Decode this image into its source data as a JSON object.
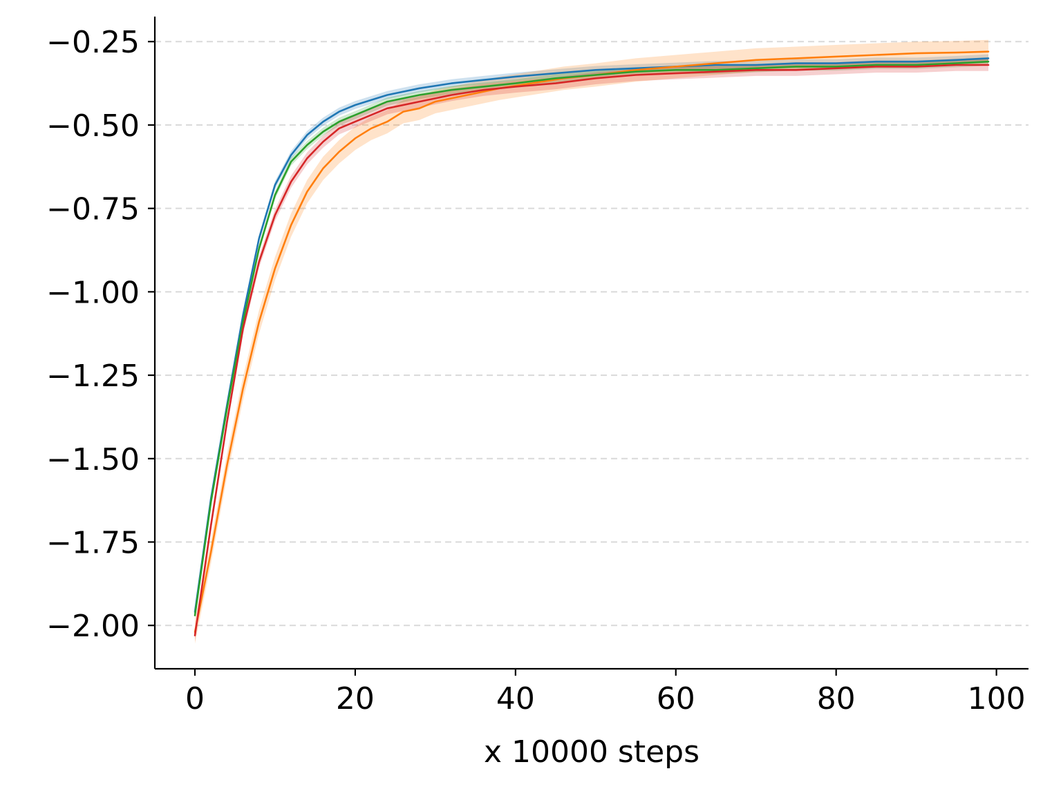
{
  "chart_data": {
    "type": "line",
    "title": "",
    "xlabel": "x 10000 steps",
    "ylabel": "",
    "xlim": [
      -5,
      104
    ],
    "ylim": [
      -2.13,
      -0.175
    ],
    "xticks": [
      0,
      20,
      40,
      60,
      80,
      100
    ],
    "xtick_labels": [
      "0",
      "20",
      "40",
      "60",
      "80",
      "100"
    ],
    "yticks": [
      -2.0,
      -1.75,
      -1.5,
      -1.25,
      -1.0,
      -0.75,
      -0.5,
      -0.25
    ],
    "ytick_labels": [
      "−2.00",
      "−1.75",
      "−1.50",
      "−1.25",
      "−1.00",
      "−0.75",
      "−0.50",
      "−0.25"
    ],
    "grid": "horizontal dashed",
    "legend": "none",
    "series": [
      {
        "color": "#1f77b4",
        "points": [
          [
            0,
            -1.96
          ],
          [
            2,
            -1.62
          ],
          [
            4,
            -1.34
          ],
          [
            6,
            -1.07
          ],
          [
            8,
            -0.84
          ],
          [
            10,
            -0.68
          ],
          [
            12,
            -0.59
          ],
          [
            14,
            -0.53
          ],
          [
            16,
            -0.49
          ],
          [
            18,
            -0.46
          ],
          [
            20,
            -0.44
          ],
          [
            24,
            -0.41
          ],
          [
            28,
            -0.39
          ],
          [
            32,
            -0.375
          ],
          [
            36,
            -0.365
          ],
          [
            40,
            -0.355
          ],
          [
            45,
            -0.345
          ],
          [
            50,
            -0.335
          ],
          [
            55,
            -0.33
          ],
          [
            60,
            -0.325
          ],
          [
            65,
            -0.32
          ],
          [
            70,
            -0.32
          ],
          [
            75,
            -0.315
          ],
          [
            80,
            -0.315
          ],
          [
            85,
            -0.31
          ],
          [
            90,
            -0.31
          ],
          [
            95,
            -0.305
          ],
          [
            99,
            -0.3
          ]
        ],
        "band": 0.012
      },
      {
        "color": "#ff7f0e",
        "points": [
          [
            0,
            -2.02
          ],
          [
            2,
            -1.78
          ],
          [
            4,
            -1.52
          ],
          [
            6,
            -1.29
          ],
          [
            8,
            -1.09
          ],
          [
            10,
            -0.93
          ],
          [
            12,
            -0.8
          ],
          [
            14,
            -0.7
          ],
          [
            16,
            -0.63
          ],
          [
            18,
            -0.58
          ],
          [
            20,
            -0.54
          ],
          [
            22,
            -0.51
          ],
          [
            24,
            -0.49
          ],
          [
            26,
            -0.46
          ],
          [
            28,
            -0.45
          ],
          [
            30,
            -0.43
          ],
          [
            34,
            -0.41
          ],
          [
            38,
            -0.39
          ],
          [
            42,
            -0.375
          ],
          [
            46,
            -0.36
          ],
          [
            50,
            -0.35
          ],
          [
            55,
            -0.335
          ],
          [
            60,
            -0.325
          ],
          [
            65,
            -0.315
          ],
          [
            70,
            -0.305
          ],
          [
            75,
            -0.3
          ],
          [
            80,
            -0.295
          ],
          [
            85,
            -0.29
          ],
          [
            90,
            -0.285
          ],
          [
            95,
            -0.283
          ],
          [
            99,
            -0.28
          ]
        ],
        "band": 0.035
      },
      {
        "color": "#2ca02c",
        "points": [
          [
            0,
            -1.97
          ],
          [
            2,
            -1.63
          ],
          [
            4,
            -1.35
          ],
          [
            6,
            -1.09
          ],
          [
            8,
            -0.87
          ],
          [
            10,
            -0.71
          ],
          [
            12,
            -0.61
          ],
          [
            14,
            -0.56
          ],
          [
            16,
            -0.52
          ],
          [
            18,
            -0.49
          ],
          [
            20,
            -0.47
          ],
          [
            24,
            -0.43
          ],
          [
            28,
            -0.41
          ],
          [
            32,
            -0.395
          ],
          [
            36,
            -0.385
          ],
          [
            40,
            -0.375
          ],
          [
            45,
            -0.36
          ],
          [
            50,
            -0.35
          ],
          [
            55,
            -0.34
          ],
          [
            60,
            -0.335
          ],
          [
            65,
            -0.335
          ],
          [
            70,
            -0.33
          ],
          [
            75,
            -0.325
          ],
          [
            80,
            -0.325
          ],
          [
            85,
            -0.32
          ],
          [
            90,
            -0.32
          ],
          [
            95,
            -0.315
          ],
          [
            99,
            -0.31
          ]
        ],
        "band": 0.012
      },
      {
        "color": "#d62728",
        "points": [
          [
            0,
            -2.03
          ],
          [
            2,
            -1.7
          ],
          [
            4,
            -1.39
          ],
          [
            6,
            -1.11
          ],
          [
            8,
            -0.91
          ],
          [
            10,
            -0.77
          ],
          [
            12,
            -0.67
          ],
          [
            14,
            -0.6
          ],
          [
            16,
            -0.55
          ],
          [
            18,
            -0.51
          ],
          [
            20,
            -0.49
          ],
          [
            24,
            -0.45
          ],
          [
            28,
            -0.43
          ],
          [
            32,
            -0.41
          ],
          [
            36,
            -0.395
          ],
          [
            40,
            -0.385
          ],
          [
            45,
            -0.375
          ],
          [
            50,
            -0.36
          ],
          [
            55,
            -0.35
          ],
          [
            60,
            -0.345
          ],
          [
            65,
            -0.34
          ],
          [
            70,
            -0.335
          ],
          [
            75,
            -0.335
          ],
          [
            80,
            -0.33
          ],
          [
            85,
            -0.325
          ],
          [
            90,
            -0.325
          ],
          [
            95,
            -0.32
          ],
          [
            99,
            -0.32
          ]
        ],
        "band": 0.018
      }
    ]
  }
}
